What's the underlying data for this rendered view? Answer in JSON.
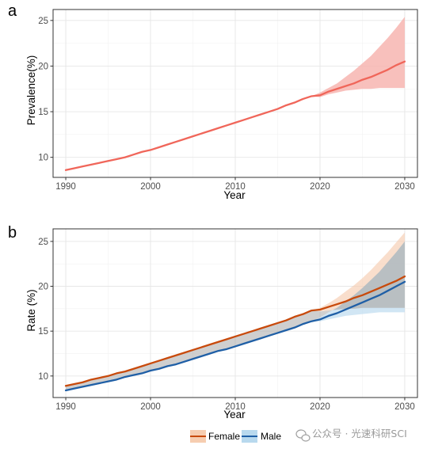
{
  "panels": [
    {
      "letter": "a"
    },
    {
      "letter": "b"
    }
  ],
  "watermark": {
    "text": "公众号 · 光速科研SCI",
    "icon": "wechat-icon"
  },
  "chart_data": [
    {
      "type": "line",
      "panel": "a",
      "xlabel": "Year",
      "ylabel": "Prevalence(%)",
      "xlim": [
        1988.5,
        2031.5
      ],
      "ylim": [
        7.8,
        26.2
      ],
      "xticks": [
        1990,
        2000,
        2010,
        2020,
        2030
      ],
      "yticks": [
        10,
        15,
        20,
        25
      ],
      "grid": true,
      "series": [
        {
          "color": "#f0665a",
          "band_color": "#f7b5b0",
          "x": [
            1990,
            1991,
            1992,
            1993,
            1994,
            1995,
            1996,
            1997,
            1998,
            1999,
            2000,
            2001,
            2002,
            2003,
            2004,
            2005,
            2006,
            2007,
            2008,
            2009,
            2010,
            2011,
            2012,
            2013,
            2014,
            2015,
            2016,
            2017,
            2018,
            2019,
            2020,
            2021,
            2022,
            2023,
            2024,
            2025,
            2026,
            2027,
            2028,
            2029,
            2030
          ],
          "values": [
            8.6,
            8.8,
            9.0,
            9.2,
            9.4,
            9.6,
            9.8,
            10.0,
            10.3,
            10.6,
            10.8,
            11.1,
            11.4,
            11.7,
            12.0,
            12.3,
            12.6,
            12.9,
            13.2,
            13.5,
            13.8,
            14.1,
            14.4,
            14.7,
            15.0,
            15.3,
            15.7,
            16.0,
            16.4,
            16.7,
            16.8,
            17.2,
            17.5,
            17.8,
            18.1,
            18.5,
            18.8,
            19.2,
            19.6,
            20.1,
            20.5
          ],
          "band_lower": [
            8.6,
            8.8,
            9.0,
            9.2,
            9.4,
            9.6,
            9.8,
            10.0,
            10.3,
            10.6,
            10.8,
            11.1,
            11.4,
            11.7,
            12.0,
            12.3,
            12.6,
            12.9,
            13.2,
            13.5,
            13.8,
            14.1,
            14.4,
            14.7,
            15.0,
            15.3,
            15.7,
            16.0,
            16.4,
            16.7,
            16.6,
            16.9,
            17.1,
            17.3,
            17.4,
            17.5,
            17.5,
            17.6,
            17.6,
            17.6,
            17.6
          ],
          "band_upper": [
            8.6,
            8.8,
            9.0,
            9.2,
            9.4,
            9.6,
            9.8,
            10.0,
            10.3,
            10.6,
            10.8,
            11.1,
            11.4,
            11.7,
            12.0,
            12.3,
            12.6,
            12.9,
            13.2,
            13.5,
            13.8,
            14.1,
            14.4,
            14.7,
            15.0,
            15.3,
            15.7,
            16.0,
            16.4,
            16.7,
            17.1,
            17.6,
            18.1,
            18.8,
            19.5,
            20.3,
            21.1,
            22.1,
            23.1,
            24.2,
            25.4
          ]
        }
      ]
    },
    {
      "type": "line",
      "panel": "b",
      "xlabel": "Year",
      "ylabel": "Rate (%)",
      "xlim": [
        1988.5,
        2031.5
      ],
      "ylim": [
        7.6,
        26.4
      ],
      "xticks": [
        1990,
        2000,
        2010,
        2020,
        2030
      ],
      "yticks": [
        10,
        15,
        20,
        25
      ],
      "grid": true,
      "legend_position": "bottom",
      "series": [
        {
          "name": "Female",
          "color": "#c84a0c",
          "band_color": "#f6cdb0",
          "x": [
            1990,
            1991,
            1992,
            1993,
            1994,
            1995,
            1996,
            1997,
            1998,
            1999,
            2000,
            2001,
            2002,
            2003,
            2004,
            2005,
            2006,
            2007,
            2008,
            2009,
            2010,
            2011,
            2012,
            2013,
            2014,
            2015,
            2016,
            2017,
            2018,
            2019,
            2020,
            2021,
            2022,
            2023,
            2024,
            2025,
            2026,
            2027,
            2028,
            2029,
            2030
          ],
          "values": [
            8.9,
            9.1,
            9.3,
            9.6,
            9.8,
            10.0,
            10.3,
            10.5,
            10.8,
            11.1,
            11.4,
            11.7,
            12.0,
            12.3,
            12.6,
            12.9,
            13.2,
            13.5,
            13.8,
            14.1,
            14.4,
            14.7,
            15.0,
            15.3,
            15.6,
            15.9,
            16.2,
            16.6,
            16.9,
            17.3,
            17.4,
            17.7,
            18.0,
            18.3,
            18.7,
            19.0,
            19.4,
            19.8,
            20.2,
            20.6,
            21.1
          ],
          "band_lower": [
            8.9,
            9.1,
            9.3,
            9.6,
            9.8,
            10.0,
            10.3,
            10.5,
            10.8,
            11.1,
            11.4,
            11.7,
            12.0,
            12.3,
            12.6,
            12.9,
            13.2,
            13.5,
            13.8,
            14.1,
            14.4,
            14.7,
            15.0,
            15.3,
            15.6,
            15.9,
            16.2,
            16.6,
            16.9,
            17.3,
            17.2,
            17.3,
            17.4,
            17.5,
            17.5,
            17.6,
            17.6,
            17.6,
            17.6,
            17.6,
            17.6
          ],
          "band_upper": [
            8.9,
            9.1,
            9.3,
            9.6,
            9.8,
            10.0,
            10.3,
            10.5,
            10.8,
            11.1,
            11.4,
            11.7,
            12.0,
            12.3,
            12.6,
            12.9,
            13.2,
            13.5,
            13.8,
            14.1,
            14.4,
            14.7,
            15.0,
            15.3,
            15.6,
            15.9,
            16.2,
            16.6,
            16.9,
            17.3,
            17.6,
            18.1,
            18.7,
            19.4,
            20.1,
            20.9,
            21.8,
            22.8,
            23.8,
            24.9,
            26.0
          ]
        },
        {
          "name": "Male",
          "color": "#1f5fa6",
          "band_color": "#b8d9ee",
          "x": [
            1990,
            1991,
            1992,
            1993,
            1994,
            1995,
            1996,
            1997,
            1998,
            1999,
            2000,
            2001,
            2002,
            2003,
            2004,
            2005,
            2006,
            2007,
            2008,
            2009,
            2010,
            2011,
            2012,
            2013,
            2014,
            2015,
            2016,
            2017,
            2018,
            2019,
            2020,
            2021,
            2022,
            2023,
            2024,
            2025,
            2026,
            2027,
            2028,
            2029,
            2030
          ],
          "values": [
            8.4,
            8.6,
            8.8,
            9.0,
            9.2,
            9.4,
            9.6,
            9.9,
            10.1,
            10.3,
            10.6,
            10.8,
            11.1,
            11.3,
            11.6,
            11.9,
            12.2,
            12.5,
            12.8,
            13.0,
            13.3,
            13.6,
            13.9,
            14.2,
            14.5,
            14.8,
            15.1,
            15.4,
            15.8,
            16.1,
            16.3,
            16.7,
            17.0,
            17.4,
            17.8,
            18.2,
            18.6,
            19.0,
            19.5,
            20.0,
            20.5
          ],
          "band_lower": [
            8.4,
            8.6,
            8.8,
            9.0,
            9.2,
            9.4,
            9.6,
            9.9,
            10.1,
            10.3,
            10.6,
            10.8,
            11.1,
            11.3,
            11.6,
            11.9,
            12.2,
            12.5,
            12.8,
            13.0,
            13.3,
            13.6,
            13.9,
            14.2,
            14.5,
            14.8,
            15.1,
            15.4,
            15.8,
            16.1,
            16.1,
            16.3,
            16.5,
            16.7,
            16.8,
            16.9,
            17.0,
            17.1,
            17.1,
            17.1,
            17.1
          ],
          "band_upper": [
            8.4,
            8.6,
            8.8,
            9.0,
            9.2,
            9.4,
            9.6,
            9.9,
            10.1,
            10.3,
            10.6,
            10.8,
            11.1,
            11.3,
            11.6,
            11.9,
            12.2,
            12.5,
            12.8,
            13.0,
            13.3,
            13.6,
            13.9,
            14.2,
            14.5,
            14.8,
            15.1,
            15.4,
            15.8,
            16.1,
            16.5,
            17.1,
            17.6,
            18.3,
            19.0,
            19.8,
            20.7,
            21.6,
            22.7,
            23.8,
            25.0
          ]
        }
      ]
    }
  ]
}
